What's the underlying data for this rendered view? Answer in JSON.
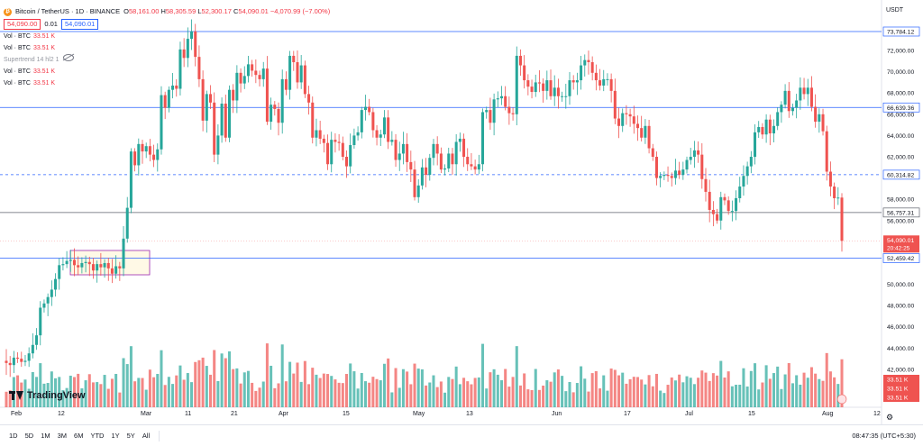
{
  "header": {
    "symbol": "Bitcoin / TetherUS · 1D · BINANCE",
    "ohlc": {
      "o_label": "O",
      "o": "58,161.00",
      "h_label": "H",
      "h": "58,305.59",
      "l_label": "L",
      "l": "52,300.17",
      "c_label": "C",
      "c": "54,090.01",
      "change": "−4,070.99 (−7.00%)"
    },
    "bid": "54,090.00",
    "spread": "0.01",
    "ask": "54,090.01"
  },
  "indicators": [
    {
      "name": "Vol · BTC",
      "value": "33.51 K"
    },
    {
      "name": "Vol · BTC",
      "value": "33.51 K"
    },
    {
      "name": "Supertrend 14 hl2 1",
      "value": ""
    },
    {
      "name": "Vol · BTC",
      "value": "33.51 K"
    },
    {
      "name": "Vol · BTC",
      "value": "33.51 K"
    }
  ],
  "currency": "USDT",
  "price_axis": {
    "ticks": [
      "72,000.00",
      "70,000.00",
      "68,000.00",
      "66,000.00",
      "64,000.00",
      "62,000.00",
      "58,000.00",
      "56,000.00",
      "54,000.00",
      "50,000.00",
      "48,000.00",
      "46,000.00",
      "44,000.00",
      "42,000.00",
      "40,000.00"
    ],
    "tick_values": [
      72000,
      70000,
      68000,
      66000,
      64000,
      62000,
      58000,
      56000,
      54000,
      50000,
      48000,
      46000,
      44000,
      42000,
      40000
    ],
    "ymin": 40000,
    "ymax": 75000
  },
  "levels": [
    {
      "label": "73,784.12",
      "value": 73784.12,
      "style": "solid"
    },
    {
      "label": "66,639.36",
      "value": 66639.36,
      "style": "solid"
    },
    {
      "label": "60,314.82",
      "value": 60314.82,
      "style": "dashed"
    },
    {
      "label": "56,757.31",
      "value": 56757.31,
      "style": "solid-dark"
    },
    {
      "label": "52,459.42",
      "value": 52459.42,
      "style": "solid"
    }
  ],
  "last_price": {
    "label": "54,090.01",
    "countdown": "20:42:25",
    "value": 54090.01
  },
  "volume_labels": [
    "33.51 K",
    "33.51 K",
    "33.51 K"
  ],
  "time_axis": [
    "Feb",
    "12",
    "Mar",
    "11",
    "21",
    "Apr",
    "15",
    "May",
    "13",
    "Jun",
    "17",
    "Jul",
    "15",
    "Aug",
    "12"
  ],
  "time_axis_x": [
    12,
    64,
    156,
    205,
    256,
    309,
    380,
    458,
    517,
    612,
    692,
    760,
    830,
    912,
    969
  ],
  "colors": {
    "up": "#26a69a",
    "down": "#ef5350",
    "level": "#2962ff",
    "box": "#9c27b0"
  },
  "bottom_bar": {
    "timeframes": [
      "1D",
      "5D",
      "1M",
      "3M",
      "6M",
      "YTD",
      "1Y",
      "5Y",
      "All"
    ],
    "clock": "08:47:35 (UTC+5:30)"
  },
  "branding": "TradingView"
}
